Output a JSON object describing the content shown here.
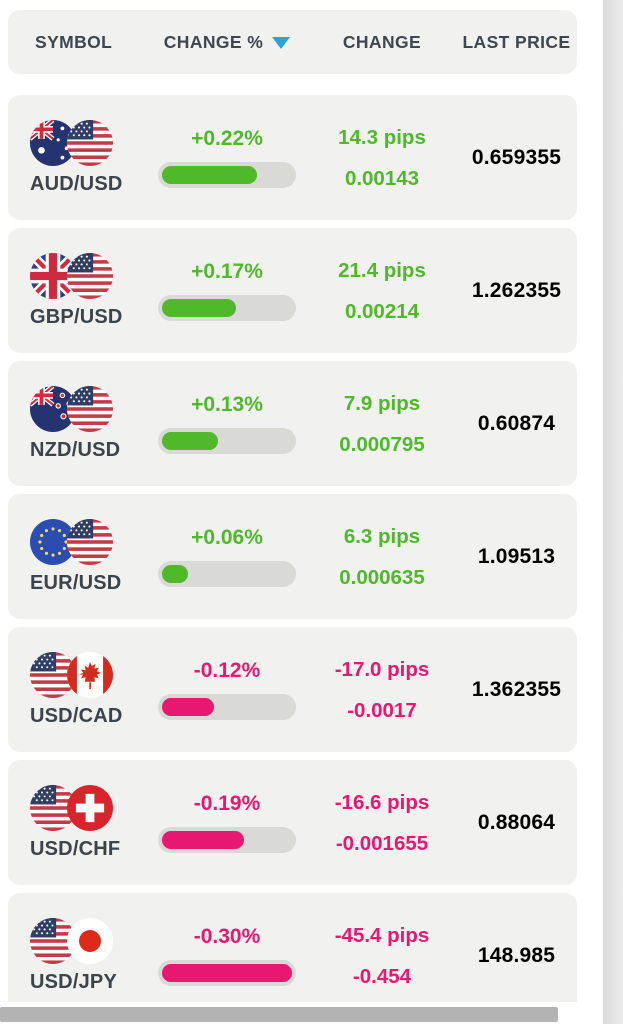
{
  "colors": {
    "positive": "#4fb82b",
    "negative": "#e8176f",
    "sort_arrow": "#29a4d9",
    "header_text": "#3d4651",
    "symbol_text": "#3b434c",
    "card_bg": "#f1f1ef",
    "bar_track": "#d9d9d6"
  },
  "header": {
    "symbol_label": "SYMBOL",
    "change_pct_label": "CHANGE %",
    "change_label": "CHANGE",
    "last_price_label": "LAST PRICE",
    "sort_icon": "sort-descending-icon",
    "sorted_column": "CHANGE %"
  },
  "rows": [
    {
      "symbol": "AUD/USD",
      "flags": [
        "australia-flag",
        "usa-flag"
      ],
      "change_pct": "+0.22%",
      "bar_fill_pct": 73,
      "direction": "up",
      "change_pips": "14.3 pips",
      "change_value": "0.00143",
      "last_price": "0.659355"
    },
    {
      "symbol": "GBP/USD",
      "flags": [
        "uk-flag",
        "usa-flag"
      ],
      "change_pct": "+0.17%",
      "bar_fill_pct": 57,
      "direction": "up",
      "change_pips": "21.4 pips",
      "change_value": "0.00214",
      "last_price": "1.262355"
    },
    {
      "symbol": "NZD/USD",
      "flags": [
        "new-zealand-flag",
        "usa-flag"
      ],
      "change_pct": "+0.13%",
      "bar_fill_pct": 43,
      "direction": "up",
      "change_pips": "7.9 pips",
      "change_value": "0.000795",
      "last_price": "0.60874"
    },
    {
      "symbol": "EUR/USD",
      "flags": [
        "eu-flag",
        "usa-flag"
      ],
      "change_pct": "+0.06%",
      "bar_fill_pct": 20,
      "direction": "up",
      "change_pips": "6.3 pips",
      "change_value": "0.000635",
      "last_price": "1.09513"
    },
    {
      "symbol": "USD/CAD",
      "flags": [
        "usa-flag",
        "canada-flag"
      ],
      "change_pct": "-0.12%",
      "bar_fill_pct": 40,
      "direction": "down",
      "change_pips": "-17.0 pips",
      "change_value": "-0.0017",
      "last_price": "1.362355"
    },
    {
      "symbol": "USD/CHF",
      "flags": [
        "usa-flag",
        "switzerland-flag"
      ],
      "change_pct": "-0.19%",
      "bar_fill_pct": 63,
      "direction": "down",
      "change_pips": "-16.6 pips",
      "change_value": "-0.001655",
      "last_price": "0.88064"
    },
    {
      "symbol": "USD/JPY",
      "flags": [
        "usa-flag",
        "japan-flag"
      ],
      "change_pct": "-0.30%",
      "bar_fill_pct": 100,
      "direction": "down",
      "change_pips": "-45.4 pips",
      "change_value": "-0.454",
      "last_price": "148.985"
    }
  ]
}
